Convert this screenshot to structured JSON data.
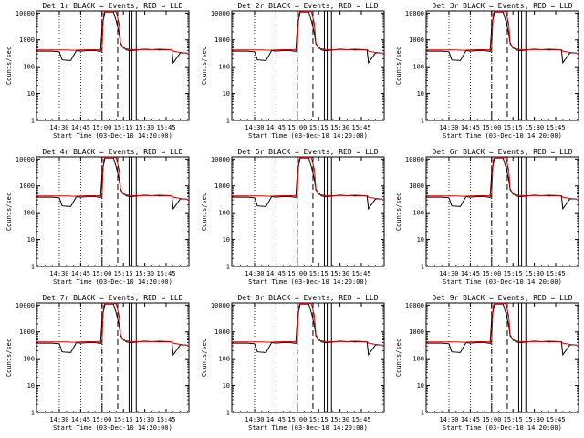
{
  "chart_data": [
    {
      "type": "line",
      "title": "Det 1r BLACK = Events, RED = LLD"
    },
    {
      "type": "line",
      "title": "Det 2r BLACK = Events, RED = LLD"
    },
    {
      "type": "line",
      "title": "Det 3r BLACK = Events, RED = LLD"
    },
    {
      "type": "line",
      "title": "Det 4r BLACK = Events, RED = LLD"
    },
    {
      "type": "line",
      "title": "Det 5r BLACK = Events, RED = LLD"
    },
    {
      "type": "line",
      "title": "Det 6r BLACK = Events, RED = LLD"
    },
    {
      "type": "line",
      "title": "Det 7r BLACK = Events, RED = LLD"
    },
    {
      "type": "line",
      "title": "Det 8r BLACK = Events, RED = LLD"
    },
    {
      "type": "line",
      "title": "Det 9r BLACK = Events, RED = LLD"
    }
  ],
  "shared": {
    "xlabel": "Start Time (03-Dec-10 14:20:00)",
    "ylabel": "Counts/sec",
    "xticks": [
      "14:30",
      "14:45",
      "15:00",
      "15:15",
      "15:30",
      "15:45"
    ],
    "xtick_minutes": [
      10,
      25,
      40,
      55,
      70,
      85
    ],
    "xlim_minutes": [
      -6,
      101
    ],
    "yscale": "log",
    "ylim": [
      1,
      12000
    ],
    "yticks": [
      "1",
      "10",
      "100",
      "1000",
      "10000"
    ],
    "ytick_values": [
      1,
      10,
      100,
      1000,
      10000
    ],
    "dotted_lines_minutes": [
      10,
      25,
      40
    ],
    "dashed_lines_minutes": [
      40,
      51
    ],
    "solid_lines_minutes": [
      59,
      61,
      64
    ],
    "series": [
      {
        "name": "Events",
        "color": "#000000",
        "x": [
          -6,
          0,
          5,
          10,
          12,
          18,
          22,
          25,
          30,
          35,
          39,
          40,
          42,
          45,
          48,
          50,
          52,
          53,
          57,
          60,
          65,
          70,
          75,
          78,
          80,
          85,
          89,
          90,
          95,
          100
        ],
        "y": [
          380,
          380,
          380,
          360,
          180,
          170,
          400,
          380,
          400,
          400,
          370,
          3000,
          11000,
          11000,
          11000,
          5000,
          1800,
          700,
          420,
          400,
          420,
          450,
          430,
          440,
          420,
          430,
          420,
          140,
          330,
          320
        ]
      },
      {
        "name": "LLD",
        "color": "#dd0000",
        "x": [
          -6,
          0,
          5,
          10,
          15,
          20,
          25,
          30,
          35,
          38,
          40,
          41,
          42,
          44,
          48,
          50,
          52,
          53,
          55,
          60,
          65,
          70,
          75,
          80,
          85,
          89,
          90,
          95,
          100
        ],
        "y": [
          420,
          420,
          420,
          420,
          420,
          410,
          420,
          430,
          430,
          420,
          500,
          9000,
          12000,
          12000,
          12000,
          11000,
          4000,
          800,
          480,
          440,
          430,
          440,
          430,
          450,
          440,
          430,
          380,
          340,
          320
        ]
      }
    ]
  }
}
